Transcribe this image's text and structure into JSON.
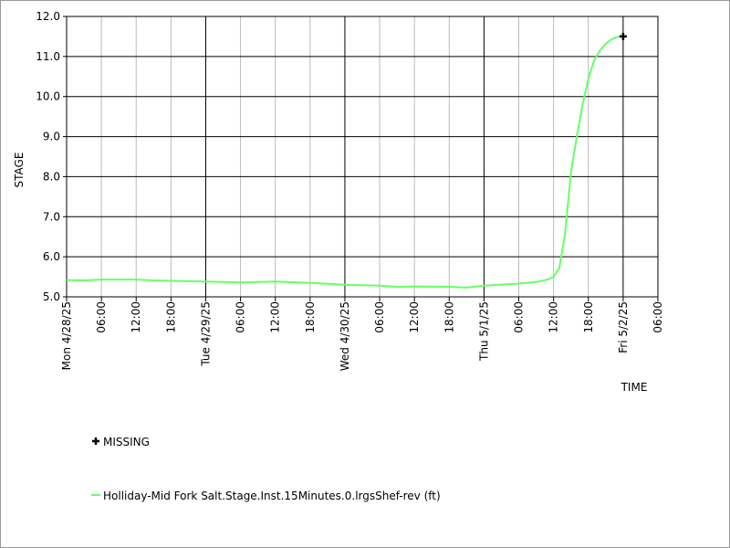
{
  "chart_data": {
    "type": "line",
    "y_label": "STAGE",
    "x_label": "TIME",
    "xlim": [
      "2025-04-28 00:00",
      "2025-05-02 06:00"
    ],
    "xticks": [
      {
        "value": "2025-04-28 00:00",
        "label": "Mon 4/28/25"
      },
      {
        "value": "2025-04-28 06:00",
        "label": "06:00"
      },
      {
        "value": "2025-04-28 12:00",
        "label": "12:00"
      },
      {
        "value": "2025-04-28 18:00",
        "label": "18:00"
      },
      {
        "value": "2025-04-29 00:00",
        "label": "Tue 4/29/25"
      },
      {
        "value": "2025-04-29 06:00",
        "label": "06:00"
      },
      {
        "value": "2025-04-29 12:00",
        "label": "12:00"
      },
      {
        "value": "2025-04-29 18:00",
        "label": "18:00"
      },
      {
        "value": "2025-04-30 00:00",
        "label": "Wed 4/30/25"
      },
      {
        "value": "2025-04-30 06:00",
        "label": "06:00"
      },
      {
        "value": "2025-04-30 12:00",
        "label": "12:00"
      },
      {
        "value": "2025-04-30 18:00",
        "label": "18:00"
      },
      {
        "value": "2025-05-01 00:00",
        "label": "Thu 5/1/25"
      },
      {
        "value": "2025-05-01 06:00",
        "label": "06:00"
      },
      {
        "value": "2025-05-01 12:00",
        "label": "12:00"
      },
      {
        "value": "2025-05-01 18:00",
        "label": "18:00"
      },
      {
        "value": "2025-05-02 00:00",
        "label": "Fri 5/2/25"
      },
      {
        "value": "2025-05-02 06:00",
        "label": "06:00"
      }
    ],
    "ylim": [
      5,
      12
    ],
    "yticks": [
      {
        "value": 5,
        "label": "5.0"
      },
      {
        "value": 6,
        "label": "6.0"
      },
      {
        "value": 7,
        "label": "7.0"
      },
      {
        "value": 8,
        "label": "8.0"
      },
      {
        "value": 9,
        "label": "9.0"
      },
      {
        "value": 10,
        "label": "10.0"
      },
      {
        "value": 11,
        "label": "11.0"
      },
      {
        "value": 12,
        "label": "12.0"
      }
    ],
    "grid": true,
    "series": [
      {
        "name": "MISSING",
        "color": "#000000",
        "marker": "plus",
        "x": [
          "2025-05-02 00:00"
        ],
        "values": [
          11.5
        ]
      },
      {
        "name": "Holliday-Mid Fork Salt.Stage.Inst.15Minutes.0.lrgsShef-rev (ft)",
        "color": "#66ff66",
        "x": [
          "2025-04-28 00:00",
          "2025-04-28 03:00",
          "2025-04-28 06:00",
          "2025-04-28 12:00",
          "2025-04-28 15:00",
          "2025-04-28 18:00",
          "2025-04-29 00:00",
          "2025-04-29 06:00",
          "2025-04-29 12:00",
          "2025-04-29 18:00",
          "2025-04-30 00:00",
          "2025-04-30 06:00",
          "2025-04-30 09:00",
          "2025-04-30 12:00",
          "2025-04-30 18:00",
          "2025-04-30 21:00",
          "2025-05-01 00:00",
          "2025-05-01 06:00",
          "2025-05-01 09:00",
          "2025-05-01 11:00",
          "2025-05-01 12:00",
          "2025-05-01 13:00",
          "2025-05-01 14:00",
          "2025-05-01 15:00",
          "2025-05-01 16:00",
          "2025-05-01 17:00",
          "2025-05-01 18:00",
          "2025-05-01 19:00",
          "2025-05-01 20:00",
          "2025-05-01 21:00",
          "2025-05-01 22:00",
          "2025-05-01 23:00",
          "2025-05-02 00:00"
        ],
        "values": [
          5.42,
          5.41,
          5.43,
          5.43,
          5.41,
          5.4,
          5.38,
          5.36,
          5.38,
          5.35,
          5.3,
          5.28,
          5.25,
          5.26,
          5.25,
          5.23,
          5.28,
          5.33,
          5.37,
          5.43,
          5.5,
          5.72,
          6.6,
          8.1,
          9.0,
          9.8,
          10.45,
          10.9,
          11.15,
          11.32,
          11.43,
          11.49,
          11.52
        ]
      }
    ]
  }
}
